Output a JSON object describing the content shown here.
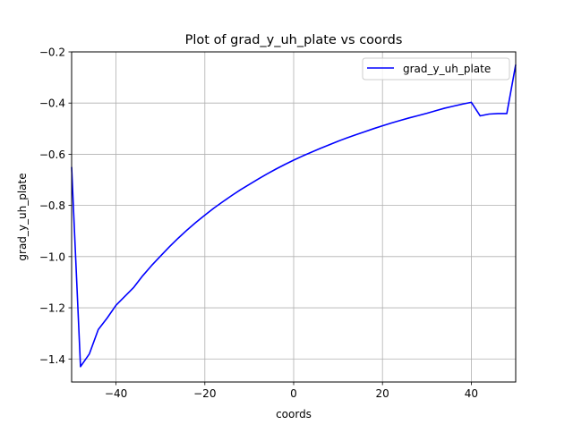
{
  "chart_data": {
    "type": "line",
    "title": "Plot of grad_y_uh_plate vs coords",
    "xlabel": "coords",
    "ylabel": "grad_y_uh_plate",
    "xlim": [
      -50,
      50
    ],
    "ylim": [
      -1.49,
      -0.2
    ],
    "x_ticks": [
      -40,
      -20,
      0,
      20,
      40
    ],
    "x_tick_labels": [
      "−40",
      "−20",
      "0",
      "20",
      "40"
    ],
    "y_ticks": [
      -1.4,
      -1.2,
      -1.0,
      -0.8,
      -0.6,
      -0.4,
      -0.2
    ],
    "y_tick_labels": [
      "−1.4",
      "−1.2",
      "−1.0",
      "−0.8",
      "−0.6",
      "−0.4",
      "−0.2"
    ],
    "grid": true,
    "legend_position": "top-right",
    "series": [
      {
        "name": "grad_y_uh_plate",
        "color": "#0000ff",
        "x": [
          -50,
          -48,
          -46,
          -44,
          -42,
          -40,
          -38,
          -36,
          -34,
          -32,
          -30,
          -28,
          -26,
          -24,
          -22,
          -20,
          -18,
          -16,
          -14,
          -12,
          -10,
          -8,
          -6,
          -4,
          -2,
          0,
          2,
          4,
          6,
          8,
          10,
          12,
          14,
          16,
          18,
          20,
          22,
          24,
          26,
          28,
          30,
          32,
          34,
          36,
          38,
          40,
          42,
          44,
          46,
          48,
          50
        ],
        "y": [
          -0.65,
          -1.43,
          -1.38,
          -1.285,
          -1.24,
          -1.19,
          -1.155,
          -1.12,
          -1.075,
          -1.035,
          -0.998,
          -0.962,
          -0.928,
          -0.896,
          -0.866,
          -0.838,
          -0.811,
          -0.786,
          -0.762,
          -0.739,
          -0.718,
          -0.697,
          -0.677,
          -0.658,
          -0.64,
          -0.623,
          -0.607,
          -0.592,
          -0.577,
          -0.563,
          -0.549,
          -0.536,
          -0.524,
          -0.512,
          -0.5,
          -0.489,
          -0.478,
          -0.468,
          -0.458,
          -0.449,
          -0.44,
          -0.43,
          -0.42,
          -0.412,
          -0.404,
          -0.397,
          -0.45,
          -0.443,
          -0.441,
          -0.441,
          -0.25
        ]
      }
    ]
  }
}
